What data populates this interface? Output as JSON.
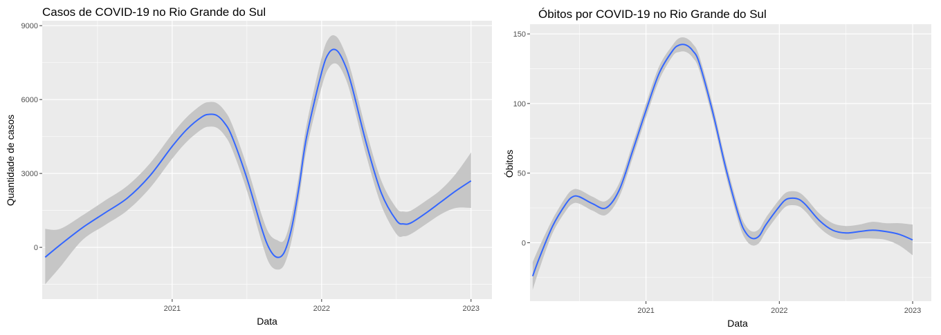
{
  "colors": {
    "panel": "#ebebeb",
    "grid": "#ffffff",
    "line": "#3366ff",
    "ribbon": "#c6c6c6",
    "tick": "#4d4d4d"
  },
  "chart_data": [
    {
      "type": "line",
      "title": "Casos de COVID-19 no Rio Grande do Sul",
      "xlabel": "Data",
      "ylabel": "Quantidade de casos",
      "x_ticks": [
        "2021",
        "2022",
        "2023"
      ],
      "x_tick_values": [
        2021.0,
        2022.0,
        2023.0
      ],
      "y_ticks": [
        "0",
        "3000",
        "6000",
        "9000"
      ],
      "y_tick_values": [
        0,
        3000,
        6000,
        9000
      ],
      "xlim": [
        2020.13,
        2023.14
      ],
      "ylim": [
        -2100,
        9200
      ],
      "grid": true,
      "series": [
        {
          "x": [
            2020.15,
            2020.25,
            2020.4,
            2020.55,
            2020.7,
            2020.85,
            2021.0,
            2021.1,
            2021.2,
            2021.25,
            2021.3,
            2021.35,
            2021.4,
            2021.5,
            2021.6,
            2021.65,
            2021.7,
            2021.75,
            2021.8,
            2021.85,
            2021.9,
            2022.0,
            2022.05,
            2022.1,
            2022.15,
            2022.2,
            2022.3,
            2022.4,
            2022.5,
            2022.55,
            2022.6,
            2022.7,
            2022.8,
            2022.9,
            2023.0
          ],
          "y": [
            -400,
            100,
            800,
            1400,
            2000,
            2900,
            4100,
            4800,
            5300,
            5400,
            5350,
            5050,
            4500,
            2800,
            750,
            -50,
            -400,
            -200,
            800,
            2500,
            4500,
            7100,
            7900,
            8000,
            7500,
            6600,
            4200,
            2200,
            1100,
            950,
            1000,
            1400,
            1850,
            2300,
            2700
          ],
          "lower": [
            -1500,
            -800,
            300,
            900,
            1500,
            2400,
            3600,
            4300,
            4800,
            4900,
            4850,
            4550,
            4000,
            2300,
            200,
            -650,
            -900,
            -700,
            300,
            2000,
            4000,
            6500,
            7300,
            7450,
            7000,
            6100,
            3700,
            1700,
            550,
            450,
            550,
            950,
            1350,
            1600,
            1600
          ],
          "upper": [
            750,
            750,
            1300,
            1900,
            2500,
            3400,
            4600,
            5300,
            5800,
            5900,
            5850,
            5550,
            5000,
            3300,
            1300,
            550,
            300,
            300,
            1300,
            3000,
            5000,
            7700,
            8500,
            8550,
            8000,
            7100,
            4700,
            2700,
            1600,
            1450,
            1500,
            1900,
            2350,
            3000,
            3850
          ]
        }
      ]
    },
    {
      "type": "line",
      "title": "Óbitos por COVID-19 no Rio Grande do Sul",
      "xlabel": "Data",
      "ylabel": "Óbitos",
      "x_ticks": [
        "2021",
        "2022",
        "2023"
      ],
      "x_tick_values": [
        2021.0,
        2022.0,
        2023.0
      ],
      "y_ticks": [
        "0",
        "50",
        "100",
        "150"
      ],
      "y_tick_values": [
        0,
        50,
        100,
        150
      ],
      "xlim": [
        2020.13,
        2023.14
      ],
      "ylim": [
        -42,
        157
      ],
      "grid": true,
      "series": [
        {
          "x": [
            2020.15,
            2020.2,
            2020.3,
            2020.4,
            2020.45,
            2020.5,
            2020.6,
            2020.7,
            2020.8,
            2020.9,
            2021.0,
            2021.1,
            2021.2,
            2021.25,
            2021.3,
            2021.35,
            2021.4,
            2021.5,
            2021.6,
            2021.7,
            2021.75,
            2021.8,
            2021.85,
            2021.9,
            2022.0,
            2022.05,
            2022.1,
            2022.15,
            2022.2,
            2022.3,
            2022.4,
            2022.5,
            2022.6,
            2022.7,
            2022.8,
            2022.9,
            2023.0
          ],
          "y": [
            -24,
            -11,
            12,
            28,
            33,
            33,
            28,
            25,
            38,
            66,
            95,
            122,
            138,
            142,
            142,
            138,
            129,
            94,
            53,
            18,
            7,
            3,
            5,
            13,
            26,
            31,
            32,
            31,
            27,
            16,
            9,
            7,
            8,
            9,
            8,
            6,
            2
          ],
          "lower": [
            -34,
            -19,
            7,
            23,
            28,
            28,
            23,
            20,
            33,
            61,
            90,
            117,
            134,
            137,
            137,
            133,
            124,
            89,
            48,
            13,
            2,
            -2,
            0,
            8,
            21,
            26,
            27,
            26,
            22,
            11,
            4,
            2,
            3,
            3,
            2,
            -2,
            -9
          ],
          "upper": [
            -14,
            -3,
            17,
            33,
            38,
            38,
            33,
            30,
            43,
            71,
            100,
            127,
            142,
            147,
            147,
            143,
            134,
            99,
            58,
            23,
            12,
            8,
            10,
            18,
            31,
            36,
            37,
            36,
            32,
            21,
            14,
            12,
            13,
            15,
            14,
            14,
            13
          ]
        }
      ]
    }
  ]
}
